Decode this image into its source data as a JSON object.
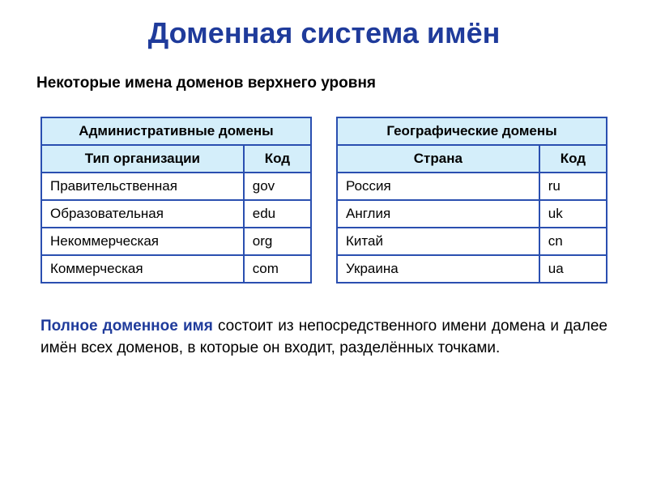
{
  "colors": {
    "title": "#1f3b9b",
    "black": "#000000",
    "border": "#2a4fb0",
    "header_bg": "#d4eefa",
    "row_bg": "#ffffff"
  },
  "title": "Доменная система имён",
  "subtitle": "Некоторые имена доменов верхнего уровня",
  "tables": {
    "admin": {
      "header": "Административные домены",
      "col1": "Тип организации",
      "col2": "Код",
      "rows": [
        {
          "label": "Правительственная",
          "code": "gov"
        },
        {
          "label": "Образовательная",
          "code": "edu"
        },
        {
          "label": "Некоммерческая",
          "code": "org"
        },
        {
          "label": "Коммерческая",
          "code": "com"
        }
      ]
    },
    "geo": {
      "header": "Географические домены",
      "col1": "Страна",
      "col2": "Код",
      "rows": [
        {
          "label": "Россия",
          "code": "ru"
        },
        {
          "label": "Англия",
          "code": "uk"
        },
        {
          "label": "Китай",
          "code": "cn"
        },
        {
          "label": "Украина",
          "code": "ua"
        }
      ]
    }
  },
  "footer": {
    "bold": "Полное доменное имя",
    "rest": " состоит из непосредственного имени домена и далее имён всех доменов, в которые он входит, разделённых точками."
  }
}
